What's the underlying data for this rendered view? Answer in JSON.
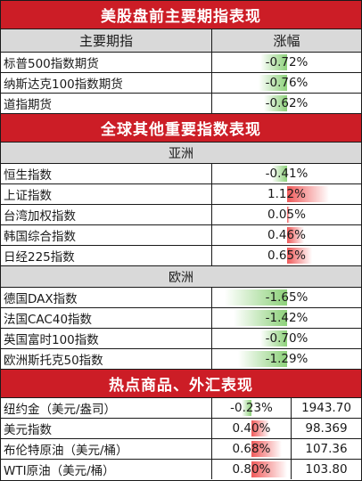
{
  "sections": {
    "us": {
      "title": "美股盘前主要期指表现",
      "header": {
        "col_name": "主要期指",
        "col_change": "涨幅"
      },
      "rows": [
        {
          "name": "标普500指数期货",
          "change": "-0.72%",
          "value": -0.72
        },
        {
          "name": "纳斯达克100指数期货",
          "change": "-0.76%",
          "value": -0.76
        },
        {
          "name": "道指期货",
          "change": "-0.62%",
          "value": -0.62
        }
      ]
    },
    "global": {
      "title": "全球其他重要指数表现",
      "asia": {
        "label": "亚洲",
        "rows": [
          {
            "name": "恒生指数",
            "change": "-0.41%",
            "value": -0.41
          },
          {
            "name": "上证指数",
            "change": "1.12%",
            "value": 1.12
          },
          {
            "name": "台湾加权指数",
            "change": "0.05%",
            "value": 0.05
          },
          {
            "name": "韩国综合指数",
            "change": "0.46%",
            "value": 0.46
          },
          {
            "name": "日经225指数",
            "change": "0.65%",
            "value": 0.65
          }
        ]
      },
      "europe": {
        "label": "欧洲",
        "rows": [
          {
            "name": "德国DAX指数",
            "change": "-1.65%",
            "value": -1.65
          },
          {
            "name": "法国CAC40指数",
            "change": "-1.42%",
            "value": -1.42
          },
          {
            "name": "英国富时100指数",
            "change": "-0.70%",
            "value": -0.7
          },
          {
            "name": "欧洲斯托克50指数",
            "change": "-1.29%",
            "value": -1.29
          }
        ]
      }
    },
    "commodities": {
      "title": "热点商品、外汇表现",
      "rows": [
        {
          "name": "纽约金（美元/盎司）",
          "change": "-0.23%",
          "value": -0.23,
          "price": "1943.70"
        },
        {
          "name": "美元指数",
          "change": "0.40%",
          "value": 0.4,
          "price": "98.369"
        },
        {
          "name": "布伦特原油（美元/桶）",
          "change": "0.68%",
          "value": 0.68,
          "price": "107.36"
        },
        {
          "name": "WTI原油（美元/桶）",
          "change": "0.80%",
          "value": 0.8,
          "price": "103.80"
        }
      ]
    }
  },
  "colors": {
    "header_red": "#cc1d26",
    "subheader_gray": "#d9d9d9",
    "up_red": "#f05a5a",
    "down_green": "#8dd17a"
  }
}
